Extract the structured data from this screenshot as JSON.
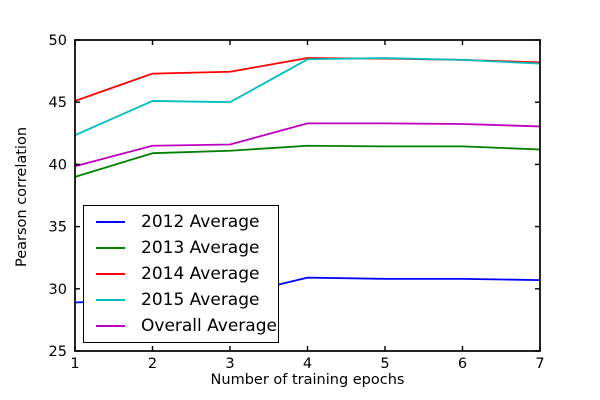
{
  "figure": {
    "background": "#ffffff",
    "frame_color": "#000000",
    "text_color": "#000000"
  },
  "chart_data": {
    "type": "line",
    "title": "",
    "xlabel": "Number of training epochs",
    "ylabel": "Pearson correlation",
    "x": [
      1,
      2,
      3,
      4,
      5,
      6,
      7
    ],
    "xlim": [
      1,
      7
    ],
    "ylim": [
      25,
      50
    ],
    "xticks": [
      1,
      2,
      3,
      4,
      5,
      6,
      7
    ],
    "yticks": [
      25,
      30,
      35,
      40,
      45,
      50
    ],
    "grid": false,
    "legend_position": "lower left inside",
    "series": [
      {
        "name": "2012 Average",
        "color": "#0000ff",
        "values": [
          28.9,
          29.1,
          29.4,
          30.9,
          30.8,
          30.8,
          30.7
        ]
      },
      {
        "name": "2013 Average",
        "color": "#008000",
        "values": [
          39.0,
          40.9,
          41.1,
          41.5,
          41.45,
          41.45,
          41.2
        ]
      },
      {
        "name": "2014 Average",
        "color": "#ff0000",
        "values": [
          45.1,
          47.3,
          47.45,
          48.55,
          48.5,
          48.4,
          48.2
        ]
      },
      {
        "name": "2015 Average",
        "color": "#00bfbf",
        "values": [
          42.35,
          45.1,
          45.0,
          48.45,
          48.55,
          48.4,
          48.1
        ]
      },
      {
        "name": "Overall Average",
        "color": "#bf00bf",
        "values": [
          39.85,
          41.5,
          41.6,
          43.3,
          43.3,
          43.25,
          43.05
        ]
      }
    ]
  }
}
